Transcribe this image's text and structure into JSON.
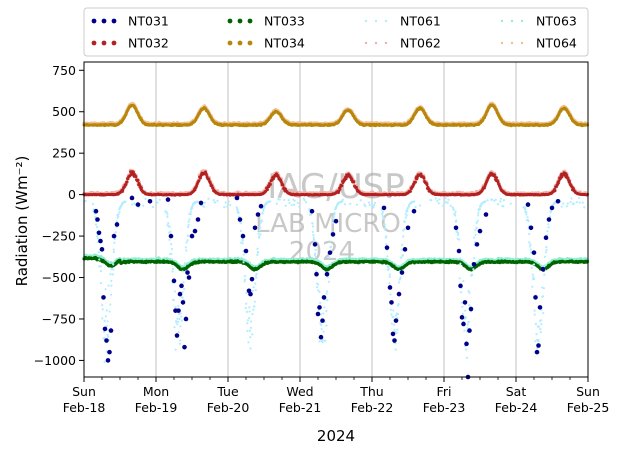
{
  "chart_data": {
    "type": "scatter",
    "xlabel": "2024",
    "ylabel": "Radiation (Wm⁻²)",
    "xlim": [
      "2024-02-18 00:00",
      "2024-02-25 00:00"
    ],
    "ylim": [
      -1100,
      800
    ],
    "yticks": [
      750,
      500,
      250,
      0,
      -250,
      -500,
      -750,
      -1000
    ],
    "ytick_labels": [
      "750",
      "500",
      "250",
      "0",
      "−250",
      "−500",
      "−750",
      "−1000"
    ],
    "xticks": [
      {
        "date": "2024-02-18",
        "label_day": "Sun",
        "label_date": "Feb-18"
      },
      {
        "date": "2024-02-19",
        "label_day": "Mon",
        "label_date": "Feb-19"
      },
      {
        "date": "2024-02-20",
        "label_day": "Tue",
        "label_date": "Feb-20"
      },
      {
        "date": "2024-02-21",
        "label_day": "Wed",
        "label_date": "Feb-21"
      },
      {
        "date": "2024-02-22",
        "label_day": "Thu",
        "label_date": "Feb-22"
      },
      {
        "date": "2024-02-23",
        "label_day": "Fri",
        "label_date": "Feb-23"
      },
      {
        "date": "2024-02-24",
        "label_day": "Sat",
        "label_date": "Feb-24"
      },
      {
        "date": "2024-02-25",
        "label_day": "Sun",
        "label_date": "Feb-25"
      }
    ],
    "grid": "vertical",
    "legend": {
      "placement": "top",
      "columns": 4,
      "entries": [
        {
          "name": "NT031",
          "color": "#00008b"
        },
        {
          "name": "NT032",
          "color": "#b22222"
        },
        {
          "name": "NT033",
          "color": "#006400"
        },
        {
          "name": "NT034",
          "color": "#b8860b"
        },
        {
          "name": "NT061",
          "color": "#b0eeff"
        },
        {
          "name": "NT062",
          "color": "#f0b0a8"
        },
        {
          "name": "NT063",
          "color": "#90eed0"
        },
        {
          "name": "NT064",
          "color": "#f0c090"
        }
      ]
    },
    "series": [
      {
        "name": "NT031",
        "description": "sparse night-time points",
        "points": [
          [
            "2024-02-18 04:00",
            -100
          ],
          [
            "2024-02-18 04:30",
            -150
          ],
          [
            "2024-02-18 05:00",
            -230
          ],
          [
            "2024-02-18 05:30",
            -280
          ],
          [
            "2024-02-18 06:00",
            -330
          ],
          [
            "2024-02-18 06:30",
            -620
          ],
          [
            "2024-02-18 07:00",
            -810
          ],
          [
            "2024-02-18 07:30",
            -880
          ],
          [
            "2024-02-18 08:00",
            -1000
          ],
          [
            "2024-02-18 08:30",
            -950
          ],
          [
            "2024-02-18 09:00",
            -820
          ],
          [
            "2024-02-18 10:00",
            -250
          ],
          [
            "2024-02-18 11:00",
            -180
          ],
          [
            "2024-02-18 16:00",
            -20
          ],
          [
            "2024-02-18 18:00",
            -60
          ],
          [
            "2024-02-18 22:00",
            -40
          ],
          [
            "2024-02-19 04:00",
            -30
          ],
          [
            "2024-02-19 05:00",
            -250
          ],
          [
            "2024-02-19 06:00",
            -520
          ],
          [
            "2024-02-19 06:30",
            -700
          ],
          [
            "2024-02-19 07:00",
            -850
          ],
          [
            "2024-02-19 07:30",
            -700
          ],
          [
            "2024-02-19 08:00",
            -600
          ],
          [
            "2024-02-19 08:30",
            -550
          ],
          [
            "2024-02-19 09:00",
            -650
          ],
          [
            "2024-02-19 09:30",
            -920
          ],
          [
            "2024-02-19 10:00",
            -750
          ],
          [
            "2024-02-19 10:30",
            -470
          ],
          [
            "2024-02-19 11:00",
            -500
          ],
          [
            "2024-02-19 12:00",
            -250
          ],
          [
            "2024-02-19 13:00",
            -220
          ],
          [
            "2024-02-19 14:00",
            -150
          ],
          [
            "2024-02-19 15:00",
            -50
          ],
          [
            "2024-02-20 03:00",
            -20
          ],
          [
            "2024-02-20 04:00",
            -150
          ],
          [
            "2024-02-20 05:00",
            -250
          ],
          [
            "2024-02-20 06:00",
            -340
          ],
          [
            "2024-02-20 07:00",
            -580
          ],
          [
            "2024-02-20 07:30",
            -600
          ],
          [
            "2024-02-20 08:00",
            -510
          ],
          [
            "2024-02-20 09:00",
            -200
          ],
          [
            "2024-02-20 10:00",
            -120
          ],
          [
            "2024-02-20 11:00",
            -70
          ],
          [
            "2024-02-21 04:00",
            -100
          ],
          [
            "2024-02-21 05:00",
            -300
          ],
          [
            "2024-02-21 05:30",
            -480
          ],
          [
            "2024-02-21 06:00",
            -720
          ],
          [
            "2024-02-21 06:30",
            -680
          ],
          [
            "2024-02-21 07:00",
            -860
          ],
          [
            "2024-02-21 07:30",
            -760
          ],
          [
            "2024-02-21 08:00",
            -620
          ],
          [
            "2024-02-21 09:00",
            -480
          ],
          [
            "2024-02-21 10:00",
            -350
          ],
          [
            "2024-02-21 11:00",
            -240
          ],
          [
            "2024-02-21 12:00",
            -160
          ],
          [
            "2024-02-22 04:00",
            -80
          ],
          [
            "2024-02-22 05:00",
            -320
          ],
          [
            "2024-02-22 06:00",
            -560
          ],
          [
            "2024-02-22 06:30",
            -650
          ],
          [
            "2024-02-22 07:00",
            -840
          ],
          [
            "2024-02-22 07:30",
            -880
          ],
          [
            "2024-02-22 08:00",
            -760
          ],
          [
            "2024-02-22 09:00",
            -600
          ],
          [
            "2024-02-22 10:00",
            -470
          ],
          [
            "2024-02-22 11:00",
            -330
          ],
          [
            "2024-02-22 12:00",
            -200
          ],
          [
            "2024-02-22 14:00",
            -100
          ],
          [
            "2024-02-23 04:00",
            -200
          ],
          [
            "2024-02-23 05:00",
            -340
          ],
          [
            "2024-02-23 05:30",
            -550
          ],
          [
            "2024-02-23 06:00",
            -740
          ],
          [
            "2024-02-23 06:30",
            -780
          ],
          [
            "2024-02-23 07:00",
            -650
          ],
          [
            "2024-02-23 07:30",
            -900
          ],
          [
            "2024-02-23 08:00",
            -1100
          ],
          [
            "2024-02-23 08:30",
            -820
          ],
          [
            "2024-02-23 09:00",
            -690
          ],
          [
            "2024-02-23 10:00",
            -420
          ],
          [
            "2024-02-23 11:00",
            -300
          ],
          [
            "2024-02-23 12:00",
            -220
          ],
          [
            "2024-02-23 14:00",
            -120
          ],
          [
            "2024-02-24 04:00",
            -60
          ],
          [
            "2024-02-24 05:00",
            -200
          ],
          [
            "2024-02-24 06:00",
            -350
          ],
          [
            "2024-02-24 06:30",
            -620
          ],
          [
            "2024-02-24 07:00",
            -950
          ],
          [
            "2024-02-24 07:30",
            -910
          ],
          [
            "2024-02-24 08:00",
            -680
          ],
          [
            "2024-02-24 09:00",
            -450
          ],
          [
            "2024-02-24 10:00",
            -260
          ],
          [
            "2024-02-24 11:00",
            -150
          ],
          [
            "2024-02-24 12:00",
            -80
          ],
          [
            "2024-02-24 14:00",
            -40
          ]
        ]
      },
      {
        "name": "NT032",
        "description": "near 0 at night, daytime humps to ~130",
        "daily_peak_hour": 16,
        "night_value": 0,
        "peaks": [
          130,
          130,
          120,
          115,
          120,
          125,
          125
        ]
      },
      {
        "name": "NT033",
        "description": "around −400 with diurnal dips to ~−450",
        "mean": -405,
        "dip": -450
      },
      {
        "name": "NT034",
        "description": "around 420 with daytime humps to ~530",
        "night_value": 420,
        "peaks": [
          540,
          520,
          500,
          510,
          520,
          540,
          520
        ]
      },
      {
        "name": "NT061",
        "description": "dense cloud overlapping NT031 at night, down to −1100"
      },
      {
        "name": "NT062",
        "description": "overlaps NT032, peaks ~140"
      },
      {
        "name": "NT063",
        "description": "overlaps NT033 around −400"
      },
      {
        "name": "NT064",
        "description": "overlaps NT034 around 430"
      }
    ]
  },
  "watermark": {
    "line1": "IAG/USP",
    "line2": "LAB MICRO",
    "line3": "2024"
  }
}
